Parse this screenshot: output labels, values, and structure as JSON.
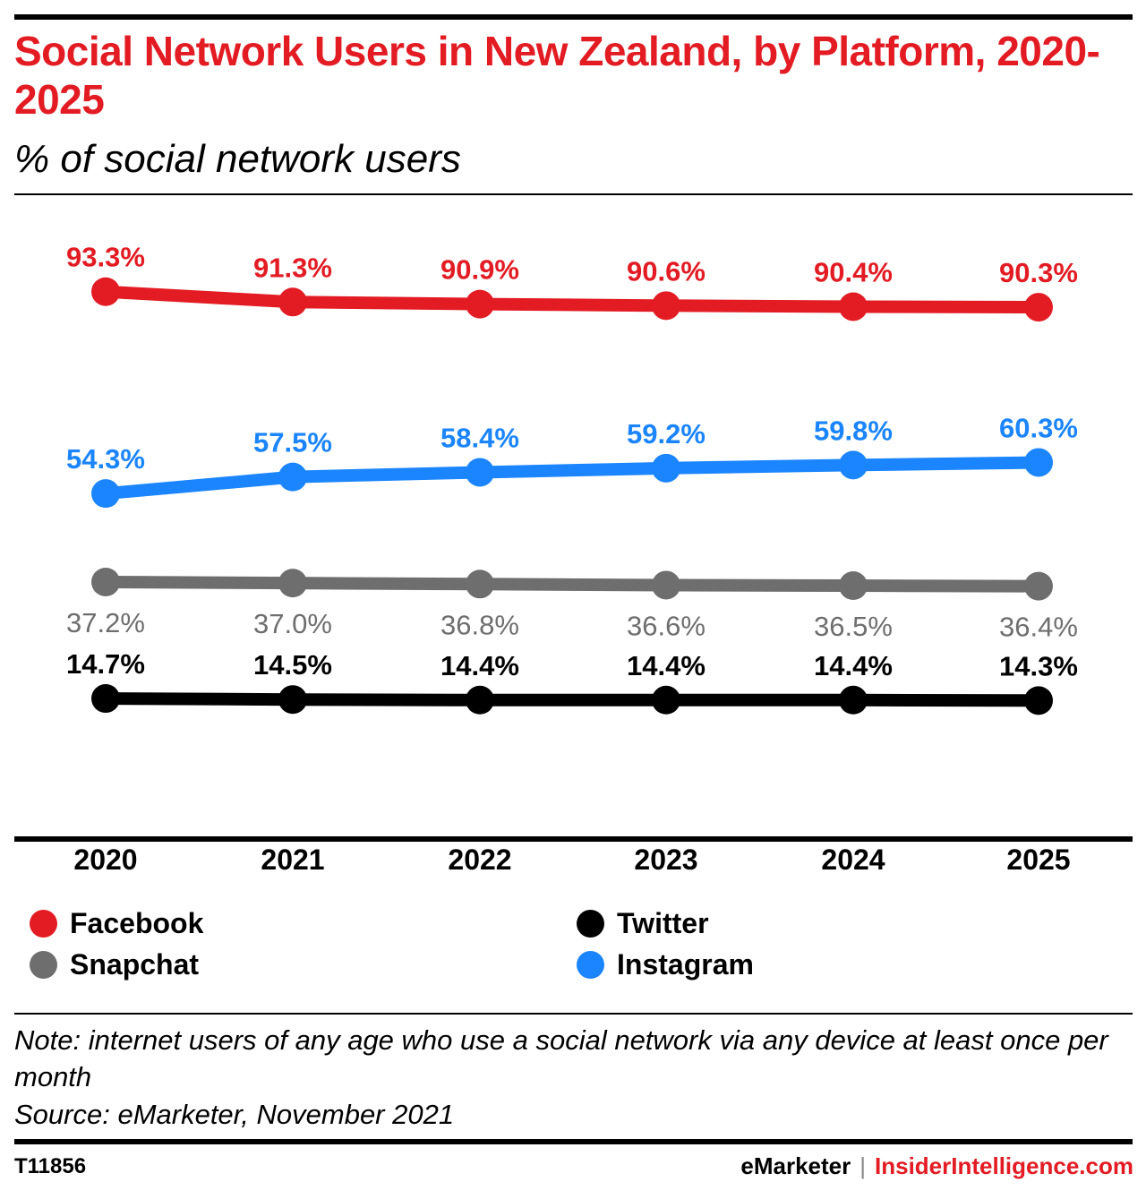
{
  "header": {
    "title": "Social Network Users in New Zealand, by Platform, 2020-2025",
    "subtitle": "% of social network users"
  },
  "chart_data": {
    "type": "line",
    "x": [
      "2020",
      "2021",
      "2022",
      "2023",
      "2024",
      "2025"
    ],
    "ylim": [
      0,
      100
    ],
    "series": [
      {
        "name": "Facebook",
        "color": "#e31b23",
        "values": [
          93.3,
          91.3,
          90.9,
          90.6,
          90.4,
          90.3
        ],
        "labels": [
          "93.3%",
          "91.3%",
          "90.9%",
          "90.6%",
          "90.4%",
          "90.3%"
        ],
        "label_position": "above"
      },
      {
        "name": "Instagram",
        "color": "#1a85ff",
        "values": [
          54.3,
          57.5,
          58.4,
          59.2,
          59.8,
          60.3
        ],
        "labels": [
          "54.3%",
          "57.5%",
          "58.4%",
          "59.2%",
          "59.8%",
          "60.3%"
        ],
        "label_position": "above"
      },
      {
        "name": "Snapchat",
        "color": "#6e6e6e",
        "values": [
          37.2,
          37.0,
          36.8,
          36.6,
          36.5,
          36.4
        ],
        "labels": [
          "37.2%",
          "37.0%",
          "36.8%",
          "36.6%",
          "36.5%",
          "36.4%"
        ],
        "label_position": "below"
      },
      {
        "name": "Twitter",
        "color": "#000000",
        "values": [
          14.7,
          14.5,
          14.4,
          14.4,
          14.4,
          14.3
        ],
        "labels": [
          "14.7%",
          "14.5%",
          "14.4%",
          "14.4%",
          "14.4%",
          "14.3%"
        ],
        "label_position": "above"
      }
    ],
    "grid": false,
    "legend_placement": "bottom"
  },
  "legend": {
    "items": [
      {
        "label": "Facebook",
        "color": "#e31b23"
      },
      {
        "label": "Twitter",
        "color": "#000000"
      },
      {
        "label": "Snapchat",
        "color": "#6e6e6e"
      },
      {
        "label": "Instagram",
        "color": "#1a85ff"
      }
    ]
  },
  "footer": {
    "note": "Note: internet users of any age who use a social network via any device at least once per month",
    "source": "Source: eMarketer, November 2021",
    "chart_id": "T11856",
    "brand_primary": "eMarketer",
    "brand_separator": "|",
    "brand_secondary": "InsiderIntelligence.com"
  }
}
